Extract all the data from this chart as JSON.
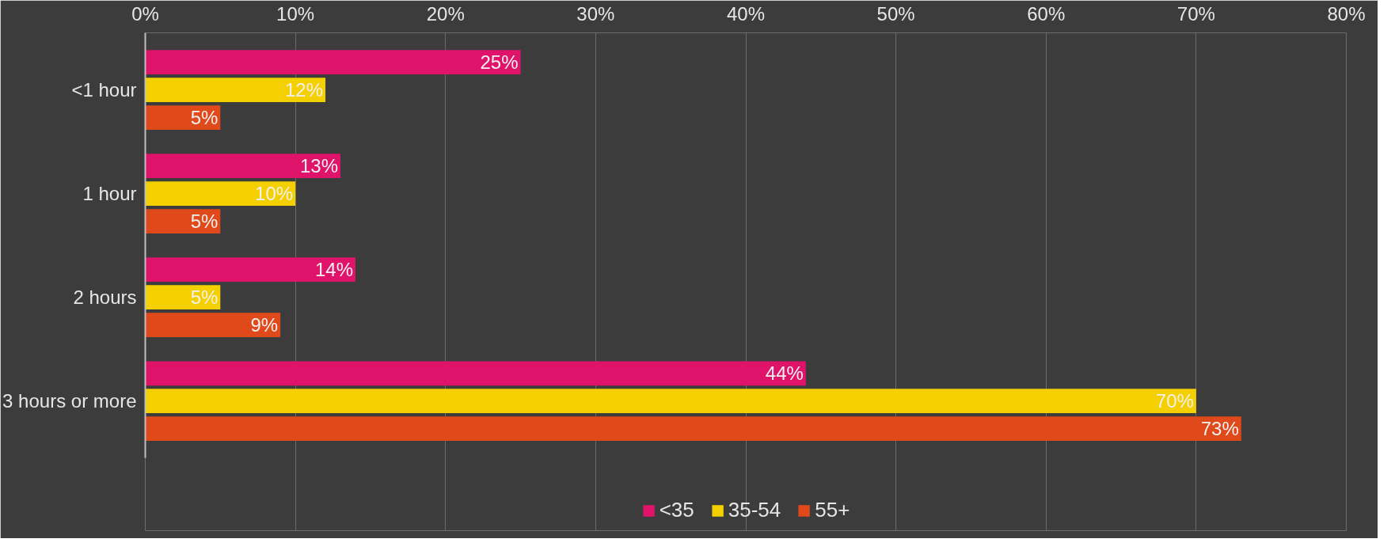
{
  "chart_data": {
    "type": "bar",
    "orientation": "horizontal",
    "categories": [
      "<1 hour",
      "1 hour",
      "2 hours",
      "3 hours or more"
    ],
    "series": [
      {
        "name": "<35",
        "color": "#e0136a",
        "values": [
          25,
          13,
          14,
          44
        ],
        "value_labels": [
          "25%",
          "13%",
          "14%",
          "44%"
        ]
      },
      {
        "name": "35-54",
        "color": "#f5d000",
        "values": [
          12,
          10,
          5,
          70
        ],
        "value_labels": [
          "12%",
          "10%",
          "5%",
          "70%"
        ]
      },
      {
        "name": "55+",
        "color": "#e04a1a",
        "values": [
          5,
          5,
          9,
          73
        ],
        "value_labels": [
          "5%",
          "5%",
          "9%",
          "73%"
        ]
      }
    ],
    "xlim": [
      0,
      80
    ],
    "xticks": [
      {
        "value": 0,
        "label": "0%"
      },
      {
        "value": 10,
        "label": "10%"
      },
      {
        "value": 20,
        "label": "20%"
      },
      {
        "value": 30,
        "label": "30%"
      },
      {
        "value": 40,
        "label": "40%"
      },
      {
        "value": 50,
        "label": "50%"
      },
      {
        "value": 60,
        "label": "60%"
      },
      {
        "value": 70,
        "label": "70%"
      },
      {
        "value": 80,
        "label": "80%"
      }
    ],
    "grid": "x",
    "legend": "bottom"
  }
}
